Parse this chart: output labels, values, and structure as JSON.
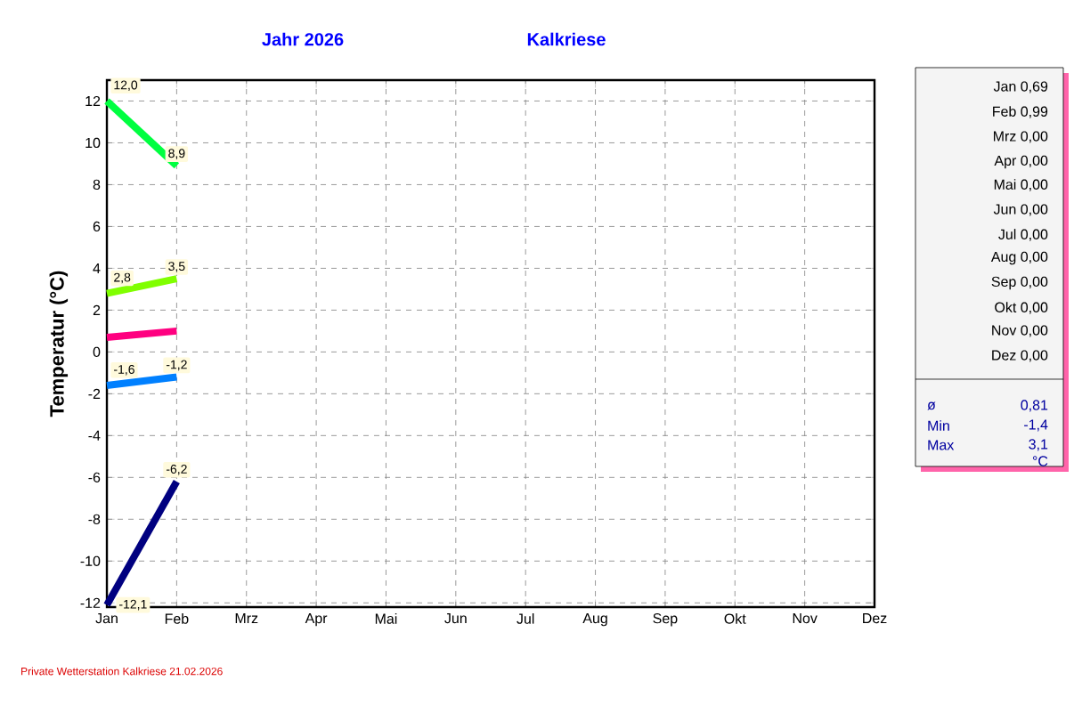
{
  "chart_data": [
    {
      "type": "line",
      "title": "Jahr  2026",
      "subtitle": "Kalkriese",
      "ylabel": "Temperatur  (°C)",
      "categories": [
        "Jan",
        "Feb",
        "Mrz",
        "Apr",
        "Mai",
        "Jun",
        "Jul",
        "Aug",
        "Sep",
        "Okt",
        "Nov",
        "Dez"
      ],
      "ylim": [
        -12.2,
        13
      ],
      "yticks": [
        -12,
        -10,
        -8,
        -6,
        -4,
        -2,
        0,
        2,
        4,
        6,
        8,
        10,
        12
      ],
      "grid": true,
      "line_style": "solid",
      "series": [
        {
          "color": "#00ff40",
          "values": [
            12.0,
            8.9,
            null,
            null,
            null,
            null,
            null,
            null,
            null,
            null,
            null,
            null
          ],
          "value_labels": [
            "12,0",
            "8,9",
            null,
            null,
            null,
            null,
            null,
            null,
            null,
            null,
            null,
            null
          ]
        },
        {
          "color": "#80ff00",
          "values": [
            2.8,
            3.5,
            null,
            null,
            null,
            null,
            null,
            null,
            null,
            null,
            null,
            null
          ],
          "value_labels": [
            "2,8",
            "3,5",
            null,
            null,
            null,
            null,
            null,
            null,
            null,
            null,
            null,
            null
          ]
        },
        {
          "color": "#ff0080",
          "values": [
            0.7,
            1.0,
            null,
            null,
            null,
            null,
            null,
            null,
            null,
            null,
            null,
            null
          ]
        },
        {
          "color": "#0080ff",
          "values": [
            -1.6,
            -1.2,
            null,
            null,
            null,
            null,
            null,
            null,
            null,
            null,
            null,
            null
          ],
          "value_labels": [
            "-1,6",
            "-1,2",
            null,
            null,
            null,
            null,
            null,
            null,
            null,
            null,
            null,
            null
          ]
        },
        {
          "color": "#000080",
          "values": [
            -12.1,
            -6.2,
            null,
            null,
            null,
            null,
            null,
            null,
            null,
            null,
            null,
            null
          ],
          "value_labels": [
            "-12,1",
            "-6,2",
            null,
            null,
            null,
            null,
            null,
            null,
            null,
            null,
            null,
            null
          ]
        }
      ],
      "annotations": [
        "Private Wetterstation Kalkriese  21.02.2026"
      ]
    },
    {
      "type": "other",
      "annotations": [
        "Jan 0,69",
        "Feb 0,99",
        "Mrz 0,00",
        "Apr 0,00",
        "Mai 0,00",
        "Jun 0,00",
        "Jul 0,00",
        "Aug 0,00",
        "Sep 0,00",
        "Okt 0,00",
        "Nov 0,00",
        "Dez 0,00",
        "ø",
        "0,81",
        "Min",
        "-1,4",
        "Max",
        "3,1",
        "°C"
      ]
    }
  ]
}
